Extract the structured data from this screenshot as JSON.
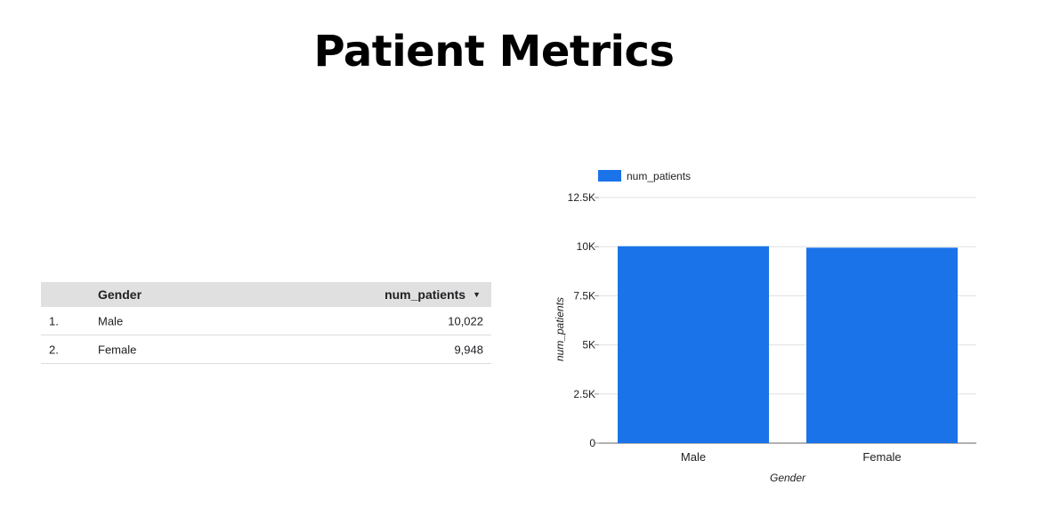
{
  "header": {
    "title": "Patient Metrics"
  },
  "table": {
    "columns": [
      "Gender",
      "num_patients"
    ],
    "sort_icon": "sort-desc-icon",
    "rows": [
      {
        "index": "1.",
        "gender": "Male",
        "num_patients": "10,022"
      },
      {
        "index": "2.",
        "gender": "Female",
        "num_patients": "9,948"
      }
    ]
  },
  "chart_data": {
    "type": "bar",
    "title": "",
    "categories": [
      "Male",
      "Female"
    ],
    "series": [
      {
        "name": "num_patients",
        "values": [
          10022,
          9948
        ],
        "color": "#1a73e8"
      }
    ],
    "xlabel": "Gender",
    "ylabel": "num_patients",
    "ylim": [
      0,
      12500
    ],
    "yticks": [
      0,
      2500,
      5000,
      7500,
      10000,
      12500
    ],
    "ytick_labels": [
      "0",
      "2.5K",
      "5K",
      "7.5K",
      "10K",
      "12.5K"
    ],
    "grid": true,
    "legend_position": "top-left"
  }
}
